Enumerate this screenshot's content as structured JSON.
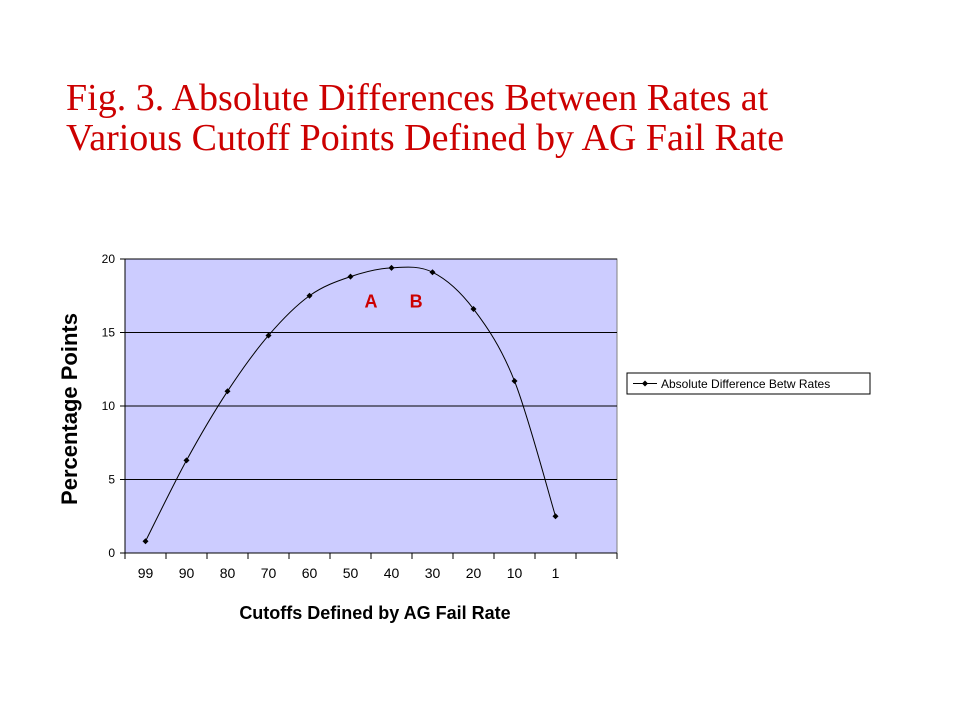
{
  "title": {
    "line1": "Fig. 3. Absolute Differences Between Rates at",
    "line2": "Various Cutoff Points Defined by AG Fail Rate"
  },
  "colors": {
    "title": "#cc0000",
    "plot_background": "#ccccff",
    "series_line": "#000000",
    "annotation": "#cc0000"
  },
  "chart_data": {
    "type": "line",
    "title": "",
    "xlabel": "Cutoffs Defined by AG Fail Rate",
    "ylabel": "Percentage Points",
    "categories": [
      "99",
      "90",
      "80",
      "70",
      "60",
      "50",
      "40",
      "30",
      "20",
      "10",
      "1"
    ],
    "ylim": [
      0,
      20
    ],
    "yticks": [
      0,
      5,
      10,
      15,
      20
    ],
    "grid": "horizontal",
    "legend_position": "right",
    "series": [
      {
        "name": "Absolute Difference Betw Rates",
        "x": [
          99,
          90,
          80,
          70,
          60,
          50,
          40,
          30,
          20,
          10,
          1
        ],
        "y": [
          0.8,
          6.3,
          11.0,
          14.8,
          17.5,
          18.8,
          19.4,
          19.1,
          16.6,
          11.7,
          2.5
        ]
      }
    ],
    "annotations": [
      {
        "text": "A",
        "x": 45,
        "y": 16.7
      },
      {
        "text": "B",
        "x": 34,
        "y": 16.7
      }
    ]
  }
}
